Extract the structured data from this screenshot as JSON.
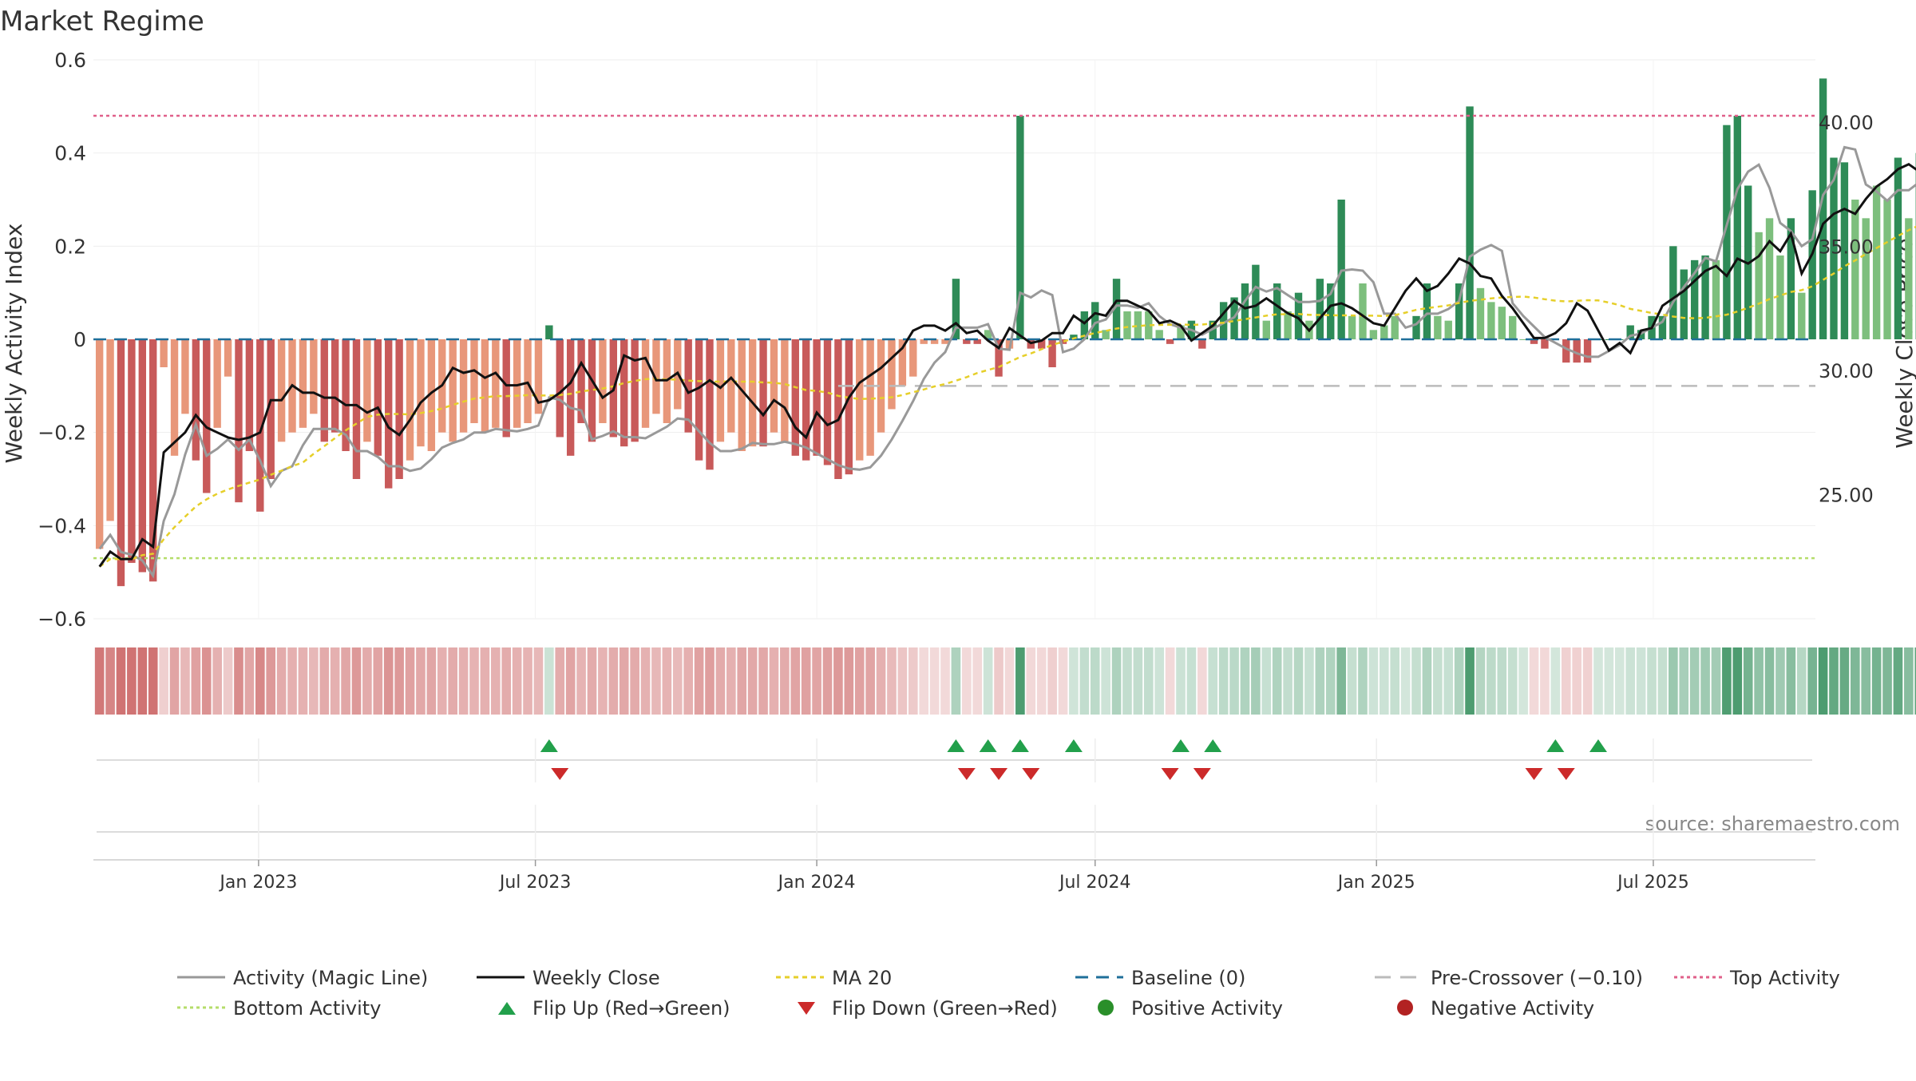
{
  "chart_data": {
    "type": "bar",
    "title": "Market Regime",
    "ylabel_left": "Weekly Activity Index",
    "ylabel_right": "Weekly Close Price",
    "source": "source: sharemaestro.com",
    "x_range": [
      "2022-09-15",
      "2025-10-15"
    ],
    "ylim_left": [
      -0.6,
      0.6
    ],
    "ylim_right": [
      20.0,
      42.5
    ],
    "yticks_left": [
      {
        "v": 0.6,
        "label": "0.6"
      },
      {
        "v": 0.4,
        "label": "0.4"
      },
      {
        "v": 0.2,
        "label": "0.2"
      },
      {
        "v": 0,
        "label": "0"
      },
      {
        "v": -0.2,
        "label": "−0.2"
      },
      {
        "v": -0.4,
        "label": "−0.4"
      },
      {
        "v": -0.6,
        "label": "−0.6"
      }
    ],
    "yticks_right": [
      {
        "v": 40,
        "label": "40.00"
      },
      {
        "v": 35,
        "label": "35.00"
      },
      {
        "v": 30,
        "label": "30.00"
      },
      {
        "v": 25,
        "label": "25.00"
      }
    ],
    "xticks": [
      {
        "date": "2023-01-01",
        "label": "Jan 2023"
      },
      {
        "date": "2023-07-01",
        "label": "Jul 2023"
      },
      {
        "date": "2024-01-01",
        "label": "Jan 2024"
      },
      {
        "date": "2024-07-01",
        "label": "Jul 2024"
      },
      {
        "date": "2025-01-01",
        "label": "Jan 2025"
      },
      {
        "date": "2025-07-01",
        "label": "Jul 2025"
      }
    ],
    "ref_lines": {
      "top_activity": 0.48,
      "bottom_activity": -0.47,
      "baseline": 0,
      "pre_crossover": -0.1
    },
    "colors": {
      "pos_dark": "#2e8b57",
      "pos_light": "#7dbf7d",
      "neg_dark": "#c85a5a",
      "neg_light": "#e8977a",
      "magic": "#999999",
      "close": "#111111",
      "ma20": "#e6cf2a",
      "baseline": "#1f6f9a",
      "pre": "#bbbbbb",
      "top": "#e0608a",
      "bottom": "#b5dd6a",
      "flip_up": "#22a04b",
      "flip_down": "#cc2a2a",
      "pos_dot": "#2a8f2a",
      "neg_dot": "#b22222"
    },
    "start_week": "2022-09-19",
    "activity": [
      -0.45,
      -0.39,
      -0.53,
      -0.48,
      -0.5,
      -0.52,
      -0.06,
      -0.25,
      -0.16,
      -0.26,
      -0.33,
      -0.19,
      -0.08,
      -0.35,
      -0.24,
      -0.37,
      -0.3,
      -0.22,
      -0.2,
      -0.19,
      -0.16,
      -0.22,
      -0.2,
      -0.24,
      -0.3,
      -0.22,
      -0.25,
      -0.32,
      -0.3,
      -0.26,
      -0.23,
      -0.24,
      -0.2,
      -0.22,
      -0.2,
      -0.18,
      -0.2,
      -0.19,
      -0.21,
      -0.19,
      -0.18,
      -0.16,
      0.03,
      -0.21,
      -0.25,
      -0.18,
      -0.22,
      -0.18,
      -0.21,
      -0.23,
      -0.22,
      -0.19,
      -0.16,
      -0.18,
      -0.15,
      -0.2,
      -0.26,
      -0.28,
      -0.22,
      -0.2,
      -0.24,
      -0.23,
      -0.23,
      -0.2,
      -0.22,
      -0.25,
      -0.26,
      -0.25,
      -0.27,
      -0.3,
      -0.29,
      -0.26,
      -0.25,
      -0.2,
      -0.15,
      -0.1,
      -0.08,
      -0.01,
      -0.01,
      -0.01,
      0.13,
      -0.01,
      -0.01,
      0.02,
      -0.08,
      -0.02,
      0.48,
      -0.02,
      -0.02,
      -0.06,
      -0.01,
      0.01,
      0.06,
      0.08,
      0.02,
      0.13,
      0.06,
      0.06,
      0.06,
      0.02,
      -0.01,
      0.03,
      0.04,
      -0.02,
      0.04,
      0.08,
      0.09,
      0.12,
      0.16,
      0.04,
      0.12,
      0.06,
      0.1,
      0.04,
      0.13,
      0.12,
      0.3,
      0.05,
      0.12,
      0.02,
      0.03,
      0.05,
      0.0,
      0.05,
      0.12,
      0.05,
      0.04,
      0.12,
      0.5,
      0.11,
      0.08,
      0.07,
      0.05,
      0.0,
      -0.01,
      -0.02,
      0.0,
      -0.05,
      -0.05,
      -0.05,
      0.0,
      0.0,
      0.0,
      0.03,
      0.02,
      0.05,
      0.05,
      0.2,
      0.15,
      0.17,
      0.18,
      0.17,
      0.46,
      0.48,
      0.33,
      0.23,
      0.26,
      0.18,
      0.26,
      0.1,
      0.32,
      0.56,
      0.39,
      0.38,
      0.3,
      0.26,
      0.33,
      0.3,
      0.39,
      0.26,
      0.4,
      0.32,
      0.38,
      0.3,
      0.31,
      0.4,
      0.36,
      0.33,
      0.4,
      0.37,
      0.31,
      0.47,
      0.37,
      0.38,
      0.32,
      0.33,
      0.36,
      0.36
    ],
    "close": [
      22.1,
      22.7,
      22.4,
      22.4,
      23.2,
      22.9,
      26.7,
      27.1,
      27.5,
      28.2,
      27.7,
      27.5,
      27.3,
      27.2,
      27.3,
      27.5,
      28.8,
      28.8,
      29.4,
      29.1,
      29.1,
      28.9,
      28.9,
      28.6,
      28.6,
      28.3,
      28.5,
      27.7,
      27.4,
      28.0,
      28.7,
      29.1,
      29.4,
      30.1,
      29.9,
      30.0,
      29.7,
      29.9,
      29.4,
      29.4,
      29.5,
      28.7,
      28.8,
      29.1,
      29.5,
      30.3,
      29.6,
      28.9,
      29.2,
      30.6,
      30.4,
      30.5,
      29.6,
      29.6,
      29.9,
      29.1,
      29.3,
      29.6,
      29.3,
      29.7,
      29.2,
      28.7,
      28.2,
      28.8,
      28.5,
      27.7,
      27.3,
      28.3,
      27.8,
      28.0,
      28.9,
      29.5,
      29.8,
      30.1,
      30.5,
      30.9,
      31.6,
      31.8,
      31.8,
      31.6,
      31.9,
      31.5,
      31.6,
      31.2,
      30.9,
      31.7,
      31.4,
      31.1,
      31.2,
      31.5,
      31.5,
      32.2,
      31.9,
      32.3,
      32.2,
      32.8,
      32.8,
      32.6,
      32.4,
      31.9,
      32.0,
      31.8,
      31.2,
      31.5,
      31.8,
      32.3,
      32.8,
      32.5,
      32.6,
      32.9,
      32.6,
      32.3,
      32.1,
      31.6,
      32.1,
      32.6,
      32.7,
      32.5,
      32.2,
      31.9,
      31.8,
      32.5,
      33.2,
      33.7,
      33.2,
      33.4,
      33.9,
      34.5,
      34.3,
      33.8,
      33.7,
      33.0,
      32.5,
      31.9,
      31.3,
      31.3,
      31.5,
      31.9,
      32.7,
      32.4,
      31.6,
      30.8,
      31.1,
      30.7,
      31.6,
      31.7,
      32.6,
      32.9,
      33.2,
      33.6,
      34.0,
      34.2,
      33.8,
      34.5,
      34.3,
      34.6,
      35.2,
      34.8,
      35.5,
      33.9,
      34.7,
      35.9,
      36.3,
      36.5,
      36.3,
      36.9,
      37.4,
      37.7,
      38.1,
      38.3,
      38.0,
      38.2,
      39.0,
      38.7,
      38.8,
      39.0,
      38.6,
      39.2,
      39.8,
      39.5,
      39.8,
      39.8,
      39.6,
      39.5,
      40.0,
      39.9,
      40.6,
      40.5
    ]
  },
  "legend": [
    {
      "key": "magic",
      "label": "Activity (Magic Line)"
    },
    {
      "key": "close",
      "label": "Weekly Close"
    },
    {
      "key": "ma20",
      "label": "MA 20"
    },
    {
      "key": "baseline",
      "label": "Baseline (0)"
    },
    {
      "key": "pre",
      "label": "Pre-Crossover (−0.10)"
    },
    {
      "key": "top",
      "label": "Top Activity"
    },
    {
      "key": "bottom",
      "label": "Bottom Activity"
    },
    {
      "key": "flip_up",
      "label": "Flip Up (Red→Green)"
    },
    {
      "key": "flip_down",
      "label": "Flip Down (Green→Red)"
    },
    {
      "key": "pos_dot",
      "label": "Positive Activity"
    },
    {
      "key": "neg_dot",
      "label": "Negative Activity"
    }
  ]
}
